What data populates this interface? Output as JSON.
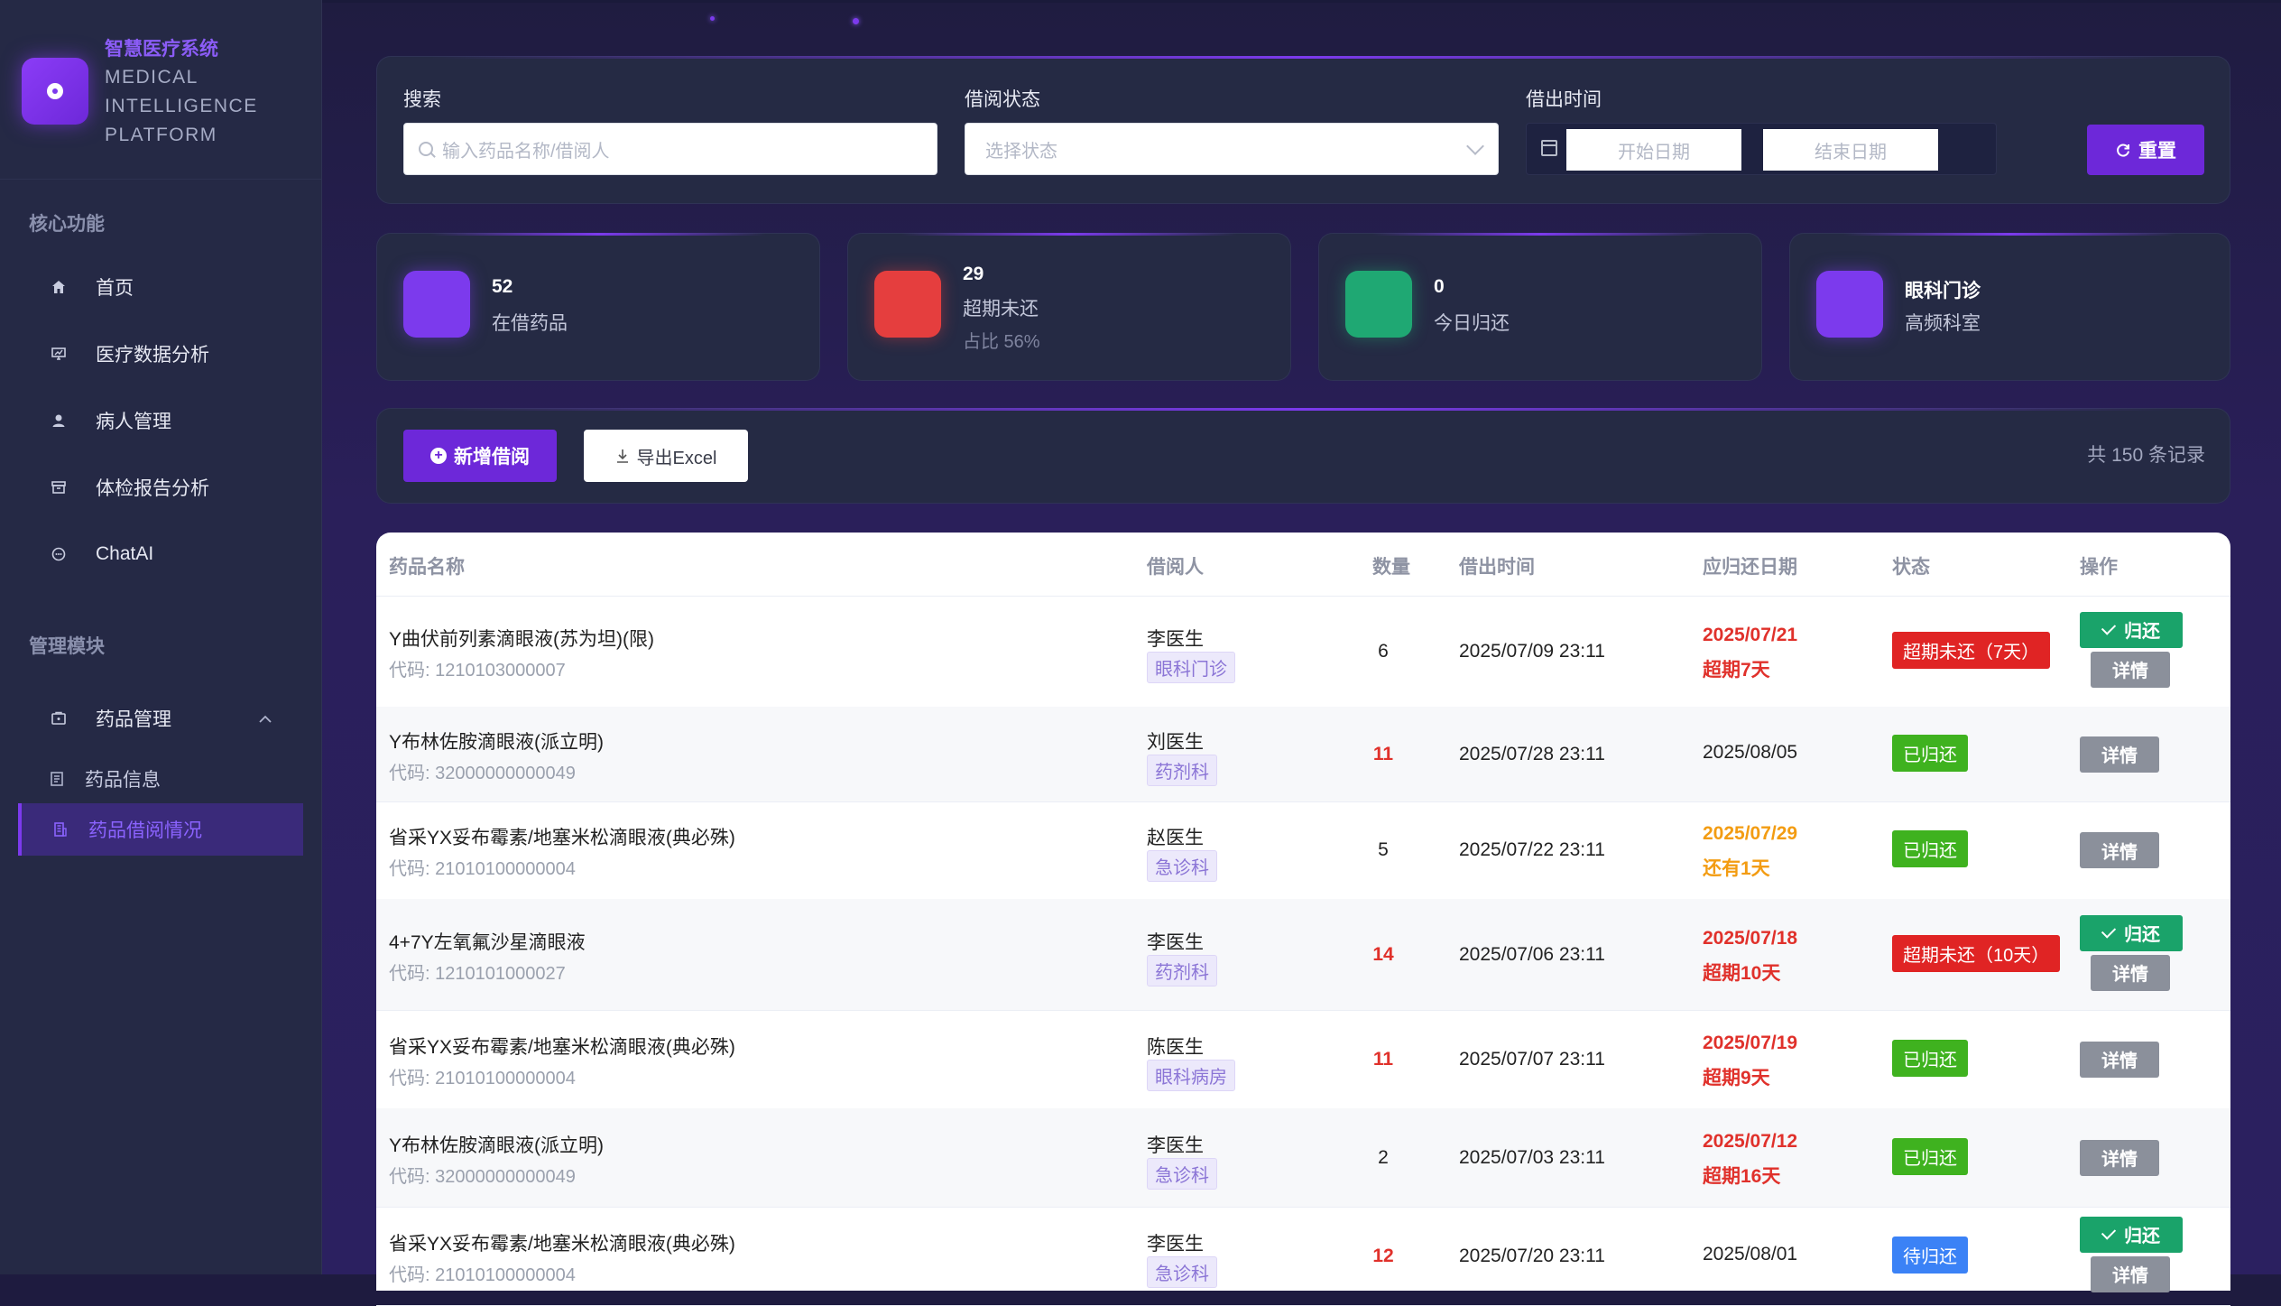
{
  "brand": {
    "cn": "智慧医疗系统",
    "en_lines": [
      "MEDICAL",
      "INTELLIGENCE",
      "PLATFORM"
    ]
  },
  "sidebar": {
    "section_core": "核心功能",
    "core_items": [
      {
        "label": "首页",
        "icon": "home-icon"
      },
      {
        "label": "医疗数据分析",
        "icon": "chart-icon"
      },
      {
        "label": "病人管理",
        "icon": "user-icon"
      },
      {
        "label": "体检报告分析",
        "icon": "archive-icon"
      },
      {
        "label": "ChatAI",
        "icon": "chat-icon"
      }
    ],
    "section_manage": "管理模块",
    "manage_item": {
      "label": "药品管理",
      "icon": "box-icon",
      "expanded": true
    },
    "sub_items": [
      {
        "label": "药品信息",
        "icon": "document-icon",
        "active": false
      },
      {
        "label": "药品借阅情况",
        "icon": "building-icon",
        "active": true
      }
    ]
  },
  "filters": {
    "search_label": "搜索",
    "search_placeholder": "输入药品名称/借阅人",
    "status_label": "借阅状态",
    "status_placeholder": "选择状态",
    "date_label": "借出时间",
    "date_start_placeholder": "开始日期",
    "date_end_placeholder": "结束日期",
    "reset_label": "重置"
  },
  "stats": [
    {
      "value": "52",
      "label": "在借药品",
      "sub": "",
      "color": "#7c3aed"
    },
    {
      "value": "29",
      "label": "超期未还",
      "sub": "占比 56%",
      "color": "#e53e3e"
    },
    {
      "value": "0",
      "label": "今日归还",
      "sub": "",
      "color": "#1fa873"
    },
    {
      "value": "眼科门诊",
      "label": "高频科室",
      "sub": "",
      "color": "#7c3aed"
    }
  ],
  "toolbar": {
    "add_label": "新增借阅",
    "export_label": "导出Excel",
    "records": "共 150 条记录"
  },
  "table": {
    "headers": [
      "药品名称",
      "借阅人",
      "数量",
      "借出时间",
      "应归还日期",
      "状态",
      "操作"
    ],
    "code_prefix": "代码: ",
    "return_label": "归还",
    "detail_label": "详情",
    "rows": [
      {
        "name": "Y曲伏前列素滴眼液(苏为坦)(限)",
        "code": "1210103000007",
        "borrower": "李医生",
        "dept": "眼科门诊",
        "qty": "6",
        "qty_red": false,
        "borrow_time": "2025/07/09 23:11",
        "due": "2025/07/21",
        "due_note": "超期7天",
        "due_style": "red",
        "status": "超期未还（7天）",
        "status_color": "red",
        "can_return": true
      },
      {
        "name": "Y布林佐胺滴眼液(派立明)",
        "code": "32000000000049",
        "borrower": "刘医生",
        "dept": "药剂科",
        "qty": "11",
        "qty_red": true,
        "borrow_time": "2025/07/28 23:11",
        "due": "2025/08/05",
        "due_note": "",
        "due_style": "normal",
        "status": "已归还",
        "status_color": "green",
        "can_return": false
      },
      {
        "name": "省采YX妥布霉素/地塞米松滴眼液(典必殊)",
        "code": "21010100000004",
        "borrower": "赵医生",
        "dept": "急诊科",
        "qty": "5",
        "qty_red": false,
        "borrow_time": "2025/07/22 23:11",
        "due": "2025/07/29",
        "due_note": "还有1天",
        "due_style": "orange",
        "status": "已归还",
        "status_color": "green",
        "can_return": false
      },
      {
        "name": "4+7Y左氧氟沙星滴眼液",
        "code": "1210101000027",
        "borrower": "李医生",
        "dept": "药剂科",
        "qty": "14",
        "qty_red": true,
        "borrow_time": "2025/07/06 23:11",
        "due": "2025/07/18",
        "due_note": "超期10天",
        "due_style": "red",
        "status": "超期未还（10天）",
        "status_color": "red",
        "can_return": true
      },
      {
        "name": "省采YX妥布霉素/地塞米松滴眼液(典必殊)",
        "code": "21010100000004",
        "borrower": "陈医生",
        "dept": "眼科病房",
        "qty": "11",
        "qty_red": true,
        "borrow_time": "2025/07/07 23:11",
        "due": "2025/07/19",
        "due_note": "超期9天",
        "due_style": "red",
        "status": "已归还",
        "status_color": "green",
        "can_return": false
      },
      {
        "name": "Y布林佐胺滴眼液(派立明)",
        "code": "32000000000049",
        "borrower": "李医生",
        "dept": "急诊科",
        "qty": "2",
        "qty_red": false,
        "borrow_time": "2025/07/03 23:11",
        "due": "2025/07/12",
        "due_note": "超期16天",
        "due_style": "red",
        "status": "已归还",
        "status_color": "green",
        "can_return": false
      },
      {
        "name": "省采YX妥布霉素/地塞米松滴眼液(典必殊)",
        "code": "21010100000004",
        "borrower": "李医生",
        "dept": "急诊科",
        "qty": "12",
        "qty_red": true,
        "borrow_time": "2025/07/20 23:11",
        "due": "2025/08/01",
        "due_note": "",
        "due_style": "normal",
        "status": "待归还",
        "status_color": "blue",
        "can_return": true
      }
    ]
  }
}
